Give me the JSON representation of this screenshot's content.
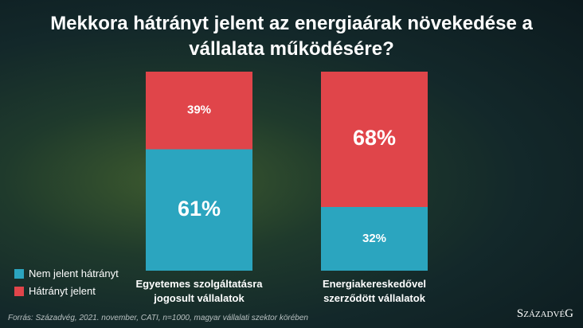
{
  "chart_data": {
    "type": "stacked_bar",
    "title": "Mekkora hátrányt jelent az energiaárak növekedése a vállalata működésére?",
    "categories": [
      "Egyetemes szolgáltatásra jogosult vállalatok",
      "Energiakereskedővel szerződött vállalatok"
    ],
    "series": [
      {
        "name": "Nem jelent hátrányt",
        "color": "#2ba5bf",
        "values": [
          61,
          32
        ],
        "value_labels": [
          "61%",
          "32%"
        ]
      },
      {
        "name": "Hátrányt jelent",
        "color": "#e0454a",
        "values": [
          39,
          68
        ],
        "value_labels": [
          "39%",
          "68%"
        ]
      }
    ],
    "ylim": [
      0,
      100
    ],
    "legend": "bottom-left",
    "source": "Forrás: Századvég, 2021. november, CATI, n=1000, magyar vállalati szektor körében",
    "logo": "SzázadvéG"
  }
}
